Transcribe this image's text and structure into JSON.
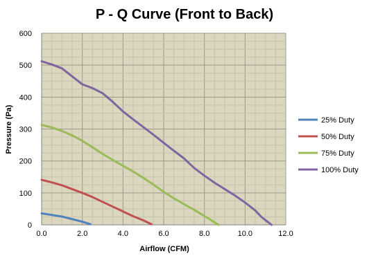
{
  "chart_data": {
    "type": "line",
    "title": "P - Q Curve (Front to Back)",
    "xlabel": "Airflow (CFM)",
    "ylabel": "Pressure (Pa)",
    "xlim": [
      0,
      12
    ],
    "ylim": [
      0,
      600
    ],
    "x_ticks": [
      "0.0",
      "2.0",
      "4.0",
      "6.0",
      "8.0",
      "10.0",
      "12.0"
    ],
    "y_ticks": [
      "0",
      "100",
      "200",
      "300",
      "400",
      "500",
      "600"
    ],
    "grid": true,
    "plot_background": "#dbd6be",
    "major_grid_color": "#9a9a8a",
    "minor_grid_color": "#c6c2ab",
    "legend_position": "right",
    "series": [
      {
        "name": "25% Duty",
        "color": "#4f81bd",
        "points": [
          [
            0.0,
            36
          ],
          [
            0.5,
            31
          ],
          [
            1.0,
            26
          ],
          [
            1.5,
            18
          ],
          [
            2.0,
            10
          ],
          [
            2.4,
            2
          ]
        ]
      },
      {
        "name": "50% Duty",
        "color": "#c0504d",
        "points": [
          [
            0.0,
            141
          ],
          [
            0.5,
            133
          ],
          [
            1.0,
            124
          ],
          [
            1.5,
            112
          ],
          [
            2.0,
            100
          ],
          [
            2.5,
            87
          ],
          [
            3.0,
            72
          ],
          [
            3.5,
            57
          ],
          [
            4.0,
            42
          ],
          [
            4.5,
            27
          ],
          [
            5.0,
            14
          ],
          [
            5.4,
            2
          ]
        ]
      },
      {
        "name": "75% Duty",
        "color": "#9bbb59",
        "points": [
          [
            0.0,
            313
          ],
          [
            0.5,
            305
          ],
          [
            1.0,
            294
          ],
          [
            1.5,
            280
          ],
          [
            2.0,
            263
          ],
          [
            2.5,
            243
          ],
          [
            3.0,
            222
          ],
          [
            3.5,
            203
          ],
          [
            4.0,
            185
          ],
          [
            4.5,
            167
          ],
          [
            5.0,
            147
          ],
          [
            5.5,
            126
          ],
          [
            6.0,
            103
          ],
          [
            6.5,
            83
          ],
          [
            7.0,
            65
          ],
          [
            7.5,
            47
          ],
          [
            8.0,
            28
          ],
          [
            8.5,
            8
          ],
          [
            8.7,
            0
          ]
        ]
      },
      {
        "name": "100% Duty",
        "color": "#8064a2",
        "points": [
          [
            0.0,
            512
          ],
          [
            0.5,
            502
          ],
          [
            1.0,
            490
          ],
          [
            1.5,
            465
          ],
          [
            2.0,
            440
          ],
          [
            2.5,
            428
          ],
          [
            3.0,
            412
          ],
          [
            3.5,
            385
          ],
          [
            4.0,
            355
          ],
          [
            4.5,
            330
          ],
          [
            5.0,
            306
          ],
          [
            5.5,
            282
          ],
          [
            6.0,
            257
          ],
          [
            6.5,
            232
          ],
          [
            7.0,
            208
          ],
          [
            7.5,
            178
          ],
          [
            8.0,
            154
          ],
          [
            8.5,
            132
          ],
          [
            9.0,
            112
          ],
          [
            9.5,
            92
          ],
          [
            10.0,
            70
          ],
          [
            10.5,
            45
          ],
          [
            10.8,
            25
          ],
          [
            11.3,
            0
          ]
        ]
      }
    ]
  }
}
